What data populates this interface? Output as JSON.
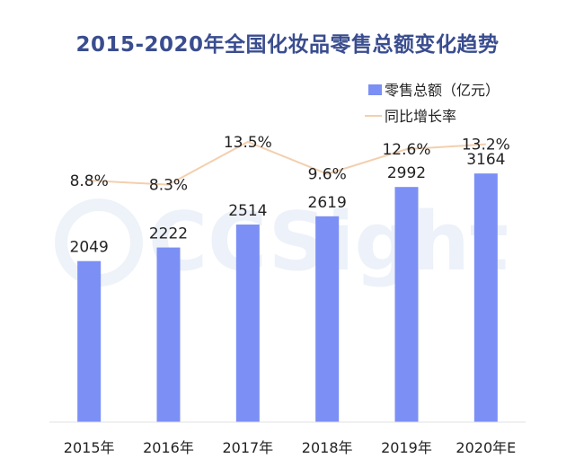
{
  "chart_data": {
    "type": "bar",
    "title": "2015-2020年全国化妆品零售总额变化趋势",
    "categories": [
      "2015年",
      "2016年",
      "2017年",
      "2018年",
      "2019年",
      "2020年E"
    ],
    "series": [
      {
        "name": "零售总额（亿元）",
        "type": "bar",
        "values": [
          2049,
          2222,
          2514,
          2619,
          2992,
          3164
        ],
        "labels": [
          "2049",
          "2222",
          "2514",
          "2619",
          "2992",
          "3164"
        ],
        "color": "#7b8ff5"
      },
      {
        "name": "同比增长率",
        "type": "line",
        "values": [
          8.8,
          8.3,
          13.5,
          9.6,
          12.6,
          13.2
        ],
        "labels": [
          "8.8%",
          "8.3%",
          "13.5%",
          "9.6%",
          "12.6%",
          "13.2%"
        ],
        "color": "#f3cfae"
      }
    ],
    "ylim": [
      0,
      3600
    ],
    "y2lim": [
      -2,
      16
    ],
    "grid": false,
    "legend": "top-right",
    "watermark": "CCSight"
  }
}
